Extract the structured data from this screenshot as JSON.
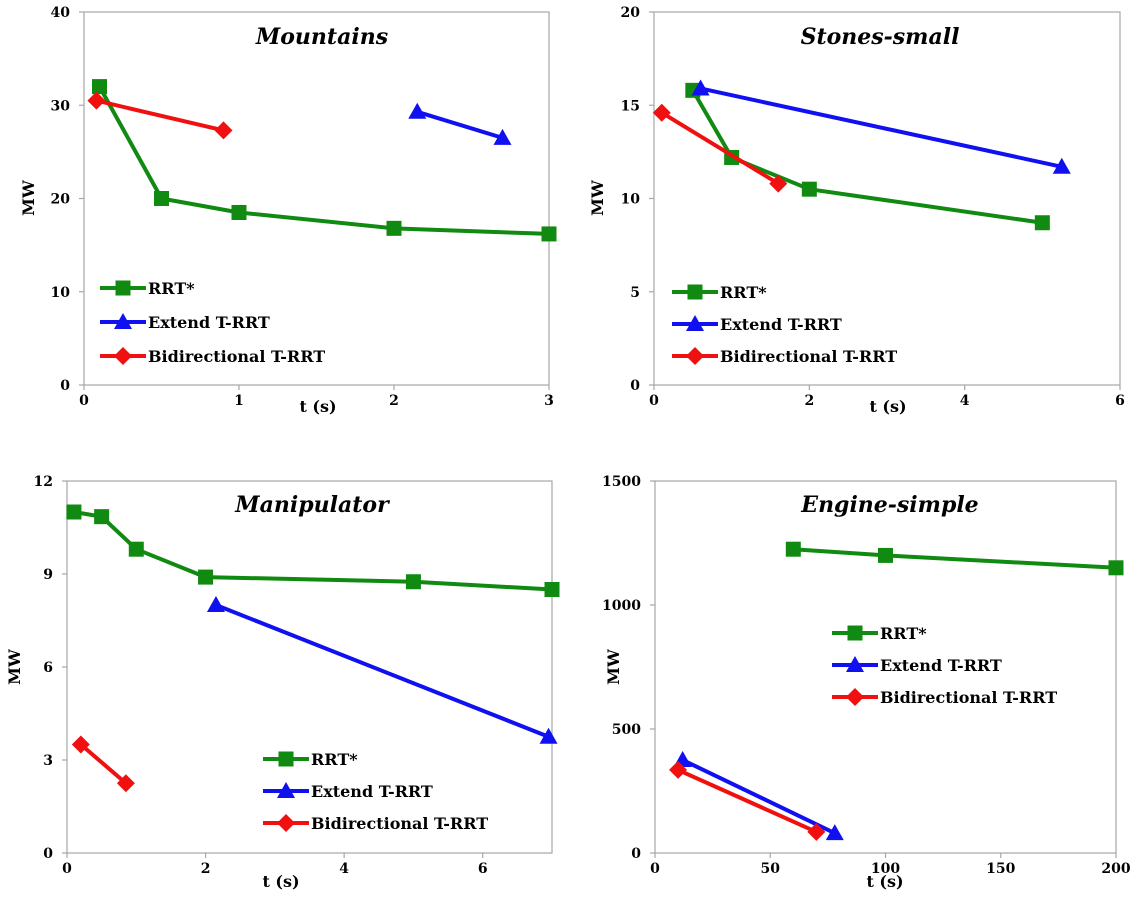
{
  "chart_data": [
    {
      "type": "line",
      "title": "Mountains",
      "xlabel": "t (s)",
      "ylabel": "MW",
      "xlim": [
        0,
        3
      ],
      "ylim": [
        0,
        40
      ],
      "xticks": [
        "0",
        "1",
        "2",
        "3"
      ],
      "yticks": [
        "0",
        "10",
        "20",
        "30",
        "40"
      ],
      "legend_position": "lower-left",
      "series": [
        {
          "name": "RRT*",
          "color": "#108a10",
          "marker": "square",
          "x": [
            0.1,
            0.5,
            1,
            2,
            3
          ],
          "y": [
            32,
            20,
            18.5,
            16.8,
            16.2
          ]
        },
        {
          "name": "Extend T-RRT",
          "color": "#1010f0",
          "marker": "triangle",
          "x": [
            2.15,
            2.7
          ],
          "y": [
            29.3,
            26.5
          ]
        },
        {
          "name": "Bidirectional T-RRT",
          "color": "#f01010",
          "marker": "diamond",
          "x": [
            0.08,
            0.9
          ],
          "y": [
            30.5,
            27.3
          ]
        }
      ]
    },
    {
      "type": "line",
      "title": "Stones-small",
      "xlabel": "t (s)",
      "ylabel": "MW",
      "xlim": [
        0,
        6
      ],
      "ylim": [
        0,
        20
      ],
      "xticks": [
        "0",
        "2",
        "4",
        "6"
      ],
      "yticks": [
        "0",
        "5",
        "10",
        "15",
        "20"
      ],
      "legend_position": "lower-left",
      "series": [
        {
          "name": "RRT*",
          "color": "#108a10",
          "marker": "square",
          "x": [
            0.5,
            1,
            2,
            5
          ],
          "y": [
            15.8,
            12.2,
            10.5,
            8.7
          ]
        },
        {
          "name": "Extend T-RRT",
          "color": "#1010f0",
          "marker": "triangle",
          "x": [
            0.6,
            5.25
          ],
          "y": [
            15.9,
            11.7
          ]
        },
        {
          "name": "Bidirectional T-RRT",
          "color": "#f01010",
          "marker": "diamond",
          "x": [
            0.1,
            1.6
          ],
          "y": [
            14.6,
            10.8
          ]
        }
      ]
    },
    {
      "type": "line",
      "title": "Manipulator",
      "xlabel": "t (s)",
      "ylabel": "MW",
      "xlim": [
        0,
        7
      ],
      "ylim": [
        0,
        12
      ],
      "xticks": [
        "0",
        "2",
        "4",
        "6"
      ],
      "yticks": [
        "0",
        "3",
        "6",
        "9",
        "12"
      ],
      "legend_position": "lower-right",
      "series": [
        {
          "name": "RRT*",
          "color": "#108a10",
          "marker": "square",
          "x": [
            0.1,
            0.5,
            1,
            2,
            5,
            7
          ],
          "y": [
            11,
            10.85,
            9.8,
            8.9,
            8.75,
            8.5
          ]
        },
        {
          "name": "Extend T-RRT",
          "color": "#1010f0",
          "marker": "triangle",
          "x": [
            2.15,
            6.95
          ],
          "y": [
            8,
            3.75
          ]
        },
        {
          "name": "Bidirectional T-RRT",
          "color": "#f01010",
          "marker": "diamond",
          "x": [
            0.2,
            0.85
          ],
          "y": [
            3.5,
            2.25
          ]
        }
      ]
    },
    {
      "type": "line",
      "title": "Engine-simple",
      "xlabel": "t (s)",
      "ylabel": "MW",
      "xlim": [
        0,
        200
      ],
      "ylim": [
        0,
        1500
      ],
      "xticks": [
        "0",
        "50",
        "100",
        "150",
        "200"
      ],
      "yticks": [
        "0",
        "500",
        "1000",
        "1500"
      ],
      "legend_position": "middle-right",
      "series": [
        {
          "name": "RRT*",
          "color": "#108a10",
          "marker": "square",
          "x": [
            60,
            100,
            200
          ],
          "y": [
            1225,
            1200,
            1150
          ]
        },
        {
          "name": "Extend T-RRT",
          "color": "#1010f0",
          "marker": "triangle",
          "x": [
            12,
            78
          ],
          "y": [
            375,
            80
          ]
        },
        {
          "name": "Bidirectional T-RRT",
          "color": "#f01010",
          "marker": "diamond",
          "x": [
            10,
            70
          ],
          "y": [
            335,
            85
          ]
        }
      ]
    }
  ]
}
